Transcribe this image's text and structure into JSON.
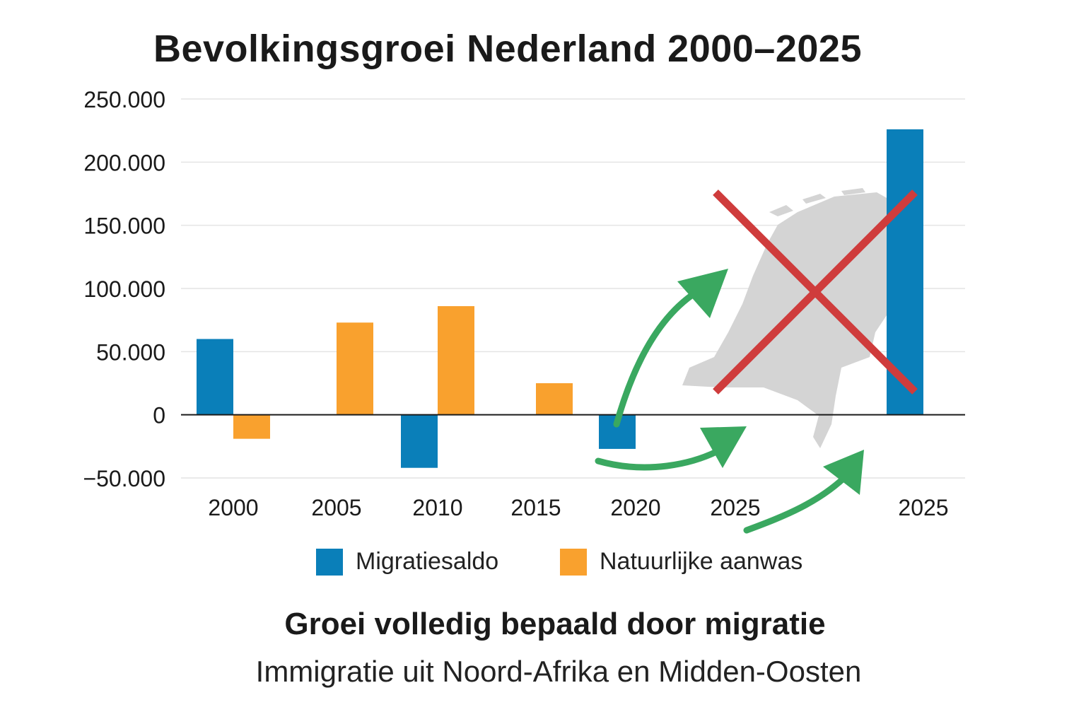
{
  "title": "Bevolkingsgroei Nederland 2000–2025",
  "colors": {
    "migratie": "#0a7fb9",
    "natuurlijk": "#f9a12e",
    "cross": "#cf3c3c",
    "arrow": "#3aa860",
    "map": "#d4d4d4",
    "grid": "#e4e4e4",
    "axis": "#1a1a1a"
  },
  "legend": {
    "migratie_label": "Migratiesaldo",
    "natuurlijk_label": "Natuurlijke aanwas"
  },
  "footer": {
    "headline": "Groei volledig bepaald door migratie",
    "subtitle": "Immigratie uit Noord-Afrika en Midden-Oosten"
  },
  "decorations": {
    "map_icon": "netherlands-map-icon",
    "cross_icon": "red-cross-icon",
    "arrow_icon": "green-arrow-icon"
  },
  "chart_data": {
    "type": "bar",
    "title": "Bevolkingsgroei Nederland 2000–2025",
    "x_tick_labels": [
      "2000",
      "2005",
      "2010",
      "2015",
      "2020",
      "2025",
      "2025"
    ],
    "y_tick_labels": [
      "250.000",
      "200.000",
      "150.000",
      "100.000",
      "50.000",
      "0",
      "−50.000"
    ],
    "y_ticks": [
      250000,
      200000,
      150000,
      100000,
      50000,
      0,
      -50000
    ],
    "ylim": [
      -50000,
      250000
    ],
    "grid": true,
    "legend_position": "bottom",
    "series": [
      {
        "name": "Migratiesaldo",
        "points": [
          {
            "x": "2000",
            "value": 60000
          },
          {
            "x": "2010",
            "value": -42000
          },
          {
            "x": "2020",
            "value": -27000
          },
          {
            "x": "2025",
            "value": 226000
          }
        ]
      },
      {
        "name": "Natuurlijke aanwas",
        "points": [
          {
            "x": "2000",
            "value": -19000
          },
          {
            "x": "2005",
            "value": 73000
          },
          {
            "x": "2010",
            "value": 86000
          },
          {
            "x": "2015",
            "value": 25000
          }
        ]
      }
    ]
  }
}
